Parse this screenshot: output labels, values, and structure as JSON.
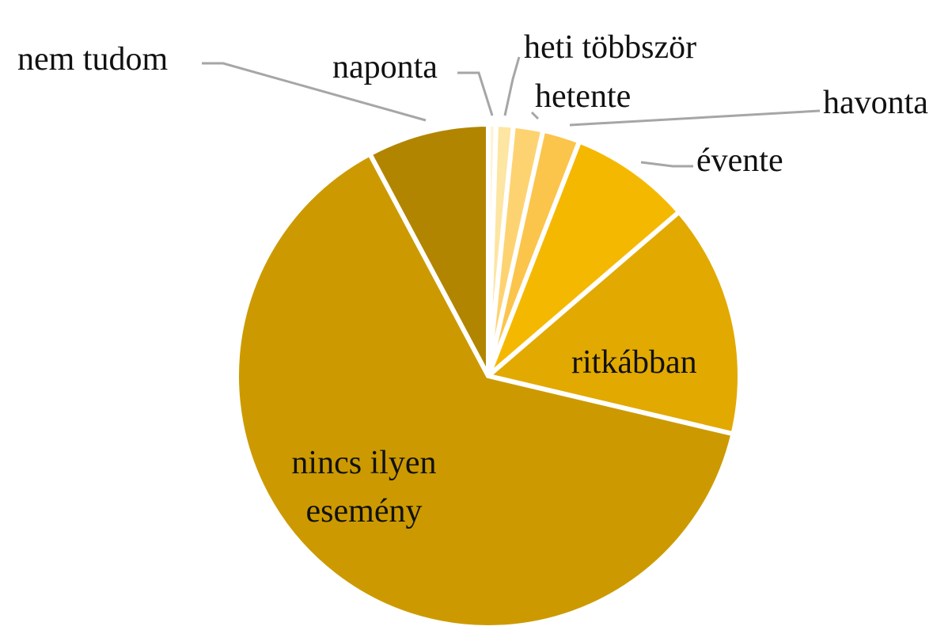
{
  "chart_data": {
    "type": "pie",
    "categories": [
      "naponta",
      "heti többször",
      "hetente",
      "havonta",
      "évente",
      "ritkábban",
      "nincs ilyen esemény",
      "nem tudom"
    ],
    "values": [
      0.5,
      1.1,
      1.9,
      2.4,
      7.8,
      15,
      63.5,
      7.8
    ],
    "colors": [
      "#fef3d2",
      "#fde5a2",
      "#fdd372",
      "#fbc54c",
      "#f5b800",
      "#e2a900",
      "#cc9a00",
      "#b28500"
    ]
  }
}
